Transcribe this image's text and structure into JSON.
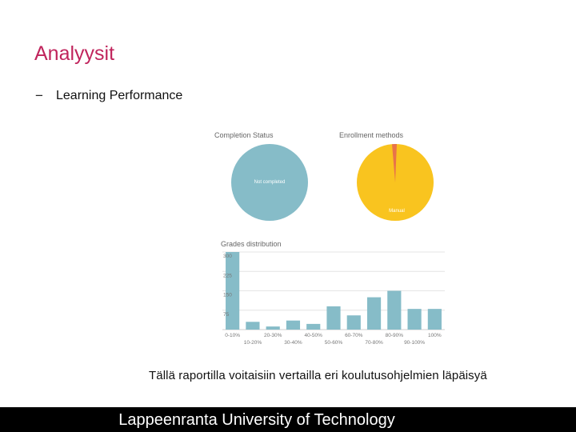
{
  "slide": {
    "title": "Analyysit",
    "bullet_marker": "−",
    "bullet_text": "Learning Performance",
    "caption": "Tällä raportilla voitaisiin vertailla eri koulutusohjelmien läpäisyä"
  },
  "panels": {
    "completion": {
      "title": "Completion Status",
      "label": "Not completed",
      "color": "#86bcc8"
    },
    "enrollment": {
      "title": "Enrollment methods",
      "label": "Manual",
      "color": "#f9c41f",
      "accent": "#e8734a"
    },
    "grades": {
      "title": "Grades distribution"
    }
  },
  "chart_data": {
    "type": "bar",
    "title": "Grades distribution",
    "categories": [
      "0-10%",
      "10-20%",
      "20-30%",
      "30-40%",
      "40-50%",
      "50-60%",
      "60-70%",
      "70-80%",
      "80-90%",
      "90-100%",
      "100%"
    ],
    "values": [
      300,
      30,
      12,
      35,
      22,
      90,
      55,
      125,
      150,
      80,
      80
    ],
    "tick_labels_upper": [
      "0-10%",
      "20-30%",
      "40-50%",
      "60-70%",
      "80-90%",
      "100%"
    ],
    "tick_labels_lower": [
      "10-20%",
      "30-40%",
      "50-60%",
      "70-80%",
      "90-100%"
    ],
    "yticks": [
      75,
      150,
      225,
      300
    ],
    "ylim": [
      0,
      300
    ],
    "color": "#86bcc8",
    "grid": true
  },
  "footer": {
    "text": "Lappeenranta University of Technology"
  }
}
